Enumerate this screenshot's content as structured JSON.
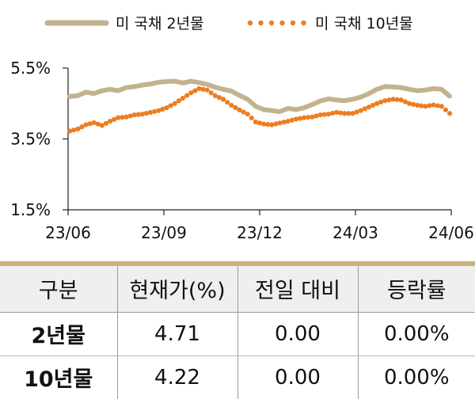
{
  "chart_data": {
    "type": "line",
    "legend_position": "top",
    "grid": false,
    "series": [
      {
        "name": "미 국채 2년물",
        "style": "solid",
        "color": "#c3b28f",
        "values": [
          4.7,
          4.72,
          4.82,
          4.78,
          4.86,
          4.9,
          4.86,
          4.95,
          4.98,
          5.02,
          5.05,
          5.1,
          5.12,
          5.13,
          5.08,
          5.13,
          5.09,
          5.04,
          4.96,
          4.9,
          4.85,
          4.73,
          4.62,
          4.42,
          4.33,
          4.3,
          4.27,
          4.36,
          4.33,
          4.38,
          4.47,
          4.57,
          4.63,
          4.6,
          4.58,
          4.62,
          4.68,
          4.78,
          4.9,
          4.98,
          4.97,
          4.95,
          4.9,
          4.86,
          4.88,
          4.92,
          4.9,
          4.71
        ]
      },
      {
        "name": "미 국채 10년물",
        "style": "dotted",
        "color": "#ee7d20",
        "values": [
          3.72,
          3.78,
          3.9,
          3.96,
          3.88,
          4.0,
          4.1,
          4.12,
          4.18,
          4.2,
          4.25,
          4.3,
          4.38,
          4.5,
          4.65,
          4.8,
          4.92,
          4.88,
          4.72,
          4.62,
          4.45,
          4.32,
          4.2,
          3.98,
          3.92,
          3.9,
          3.95,
          4.0,
          4.06,
          4.1,
          4.12,
          4.18,
          4.2,
          4.25,
          4.22,
          4.22,
          4.3,
          4.4,
          4.5,
          4.58,
          4.62,
          4.6,
          4.5,
          4.45,
          4.42,
          4.46,
          4.42,
          4.22
        ]
      }
    ],
    "x_tick_labels": [
      "23/06",
      "23/09",
      "23/12",
      "24/03",
      "24/06"
    ],
    "y_tick_labels": [
      "5.5%",
      "3.5%",
      "1.5%"
    ],
    "y_ticks": [
      5.5,
      3.5,
      1.5
    ],
    "ylim": [
      1.5,
      5.5
    ]
  },
  "table": {
    "headers": [
      "구분",
      "현재가(%)",
      "전일 대비",
      "등락률"
    ],
    "rows": [
      [
        "2년물",
        "4.71",
        "0.00",
        "0.00%"
      ],
      [
        "10년물",
        "4.22",
        "0.00",
        "0.00%"
      ]
    ]
  }
}
